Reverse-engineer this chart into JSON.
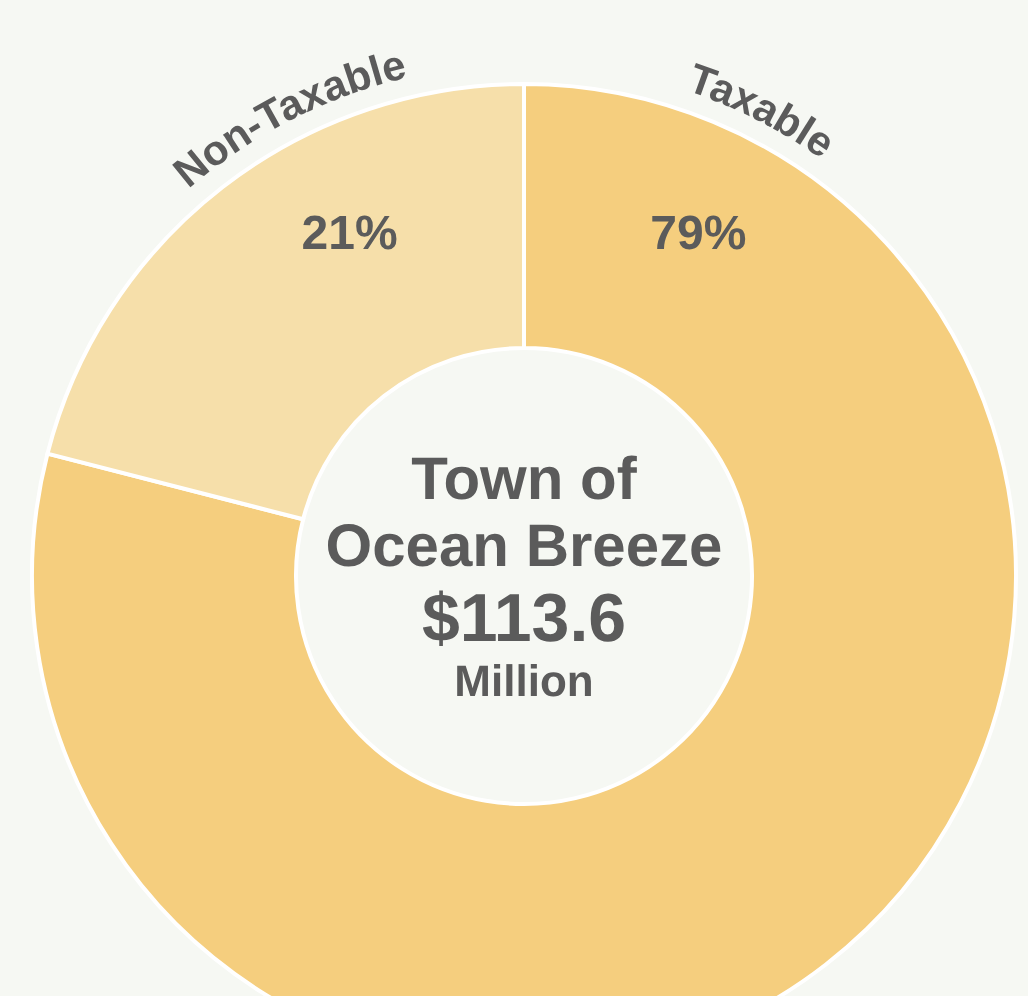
{
  "chart_data": {
    "type": "donut",
    "title": "Town of\nOcean Breeze",
    "subtitle": "$113.6",
    "annotations": [
      "Million"
    ],
    "categories": [
      "Taxable",
      "Non-Taxable"
    ],
    "values": [
      79,
      21
    ],
    "colors": [
      "#f5ce7e",
      "#f6dfaa"
    ],
    "value_labels": [
      "79%",
      "21%"
    ]
  }
}
